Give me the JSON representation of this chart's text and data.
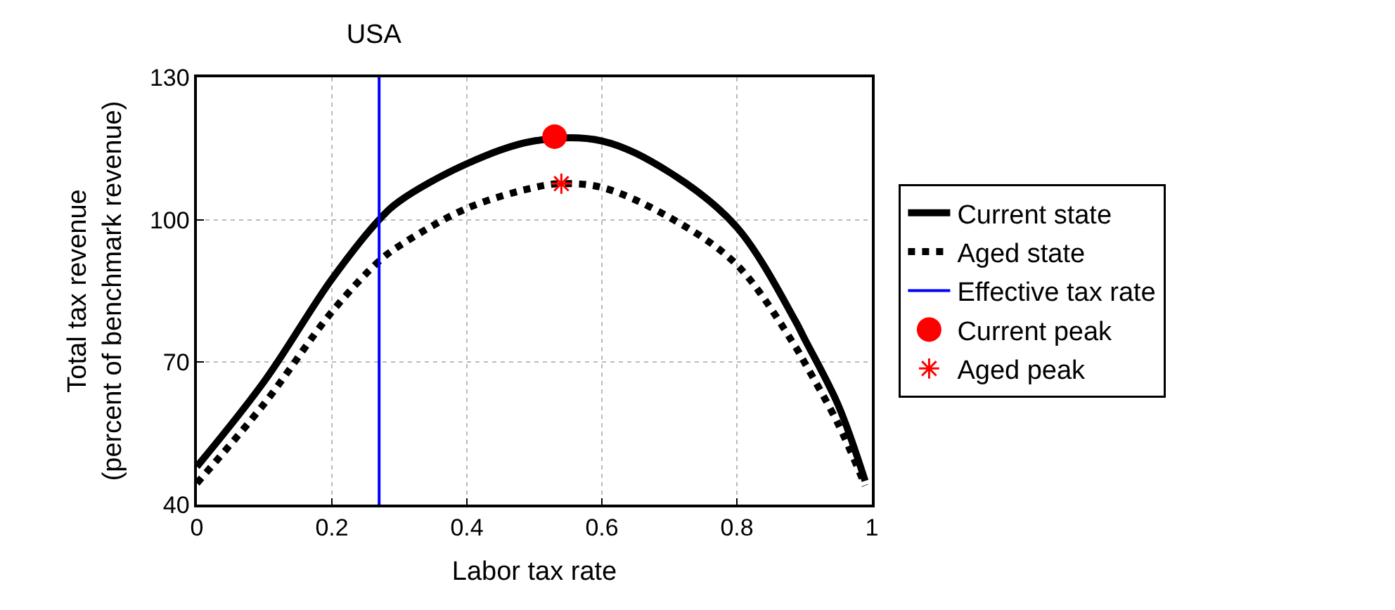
{
  "chart_data": {
    "type": "line",
    "title": "USA",
    "xlabel": "Labor tax rate",
    "ylabel": "Total tax revenue\n(percent of benchmark revenue)",
    "xlim": [
      0,
      1
    ],
    "xticks": [
      0,
      0.2,
      0.4,
      0.6,
      0.8,
      1
    ],
    "ylim": [
      40,
      130
    ],
    "yticks": [
      40,
      70,
      100,
      130
    ],
    "grid": true,
    "legend": "right",
    "series": [
      {
        "name": "Current state",
        "color": "#000000",
        "line_style": "solid",
        "marker": "none",
        "x": [
          0,
          0.1,
          0.2,
          0.27,
          0.3,
          0.4,
          0.5,
          0.6,
          0.7,
          0.8,
          0.887,
          0.9,
          0.95,
          0.99
        ],
        "values": [
          48,
          66,
          87.5,
          100,
          103.9,
          111.8,
          116.6,
          116.6,
          110,
          98.4,
          78.6,
          75,
          61,
          45
        ]
      },
      {
        "name": "Aged state",
        "color": "#000000",
        "line_style": "dotted",
        "marker": "none",
        "x": [
          0,
          0.1,
          0.2,
          0.27,
          0.3,
          0.4,
          0.5,
          0.54,
          0.6,
          0.7,
          0.8,
          0.887,
          0.9,
          0.95,
          0.99
        ],
        "values": [
          44.5,
          61.3,
          80.6,
          91.3,
          94.5,
          102.4,
          106.8,
          107.6,
          106.8,
          100.5,
          90.5,
          73.2,
          70,
          57,
          44
        ]
      },
      {
        "name": "Effective tax rate",
        "color": "#0000ff",
        "line_style": "solid",
        "marker": "none",
        "x": [
          0.27,
          0.27
        ],
        "values": [
          40,
          130
        ]
      },
      {
        "name": "Current peak",
        "type": "scatter",
        "color": "#ff0000",
        "marker": "circle",
        "x": [
          0.53
        ],
        "values": [
          117.5
        ]
      },
      {
        "name": "Aged peak",
        "type": "scatter",
        "color": "#ff0000",
        "marker": "cross",
        "x": [
          0.54
        ],
        "values": [
          107.6
        ]
      }
    ]
  }
}
